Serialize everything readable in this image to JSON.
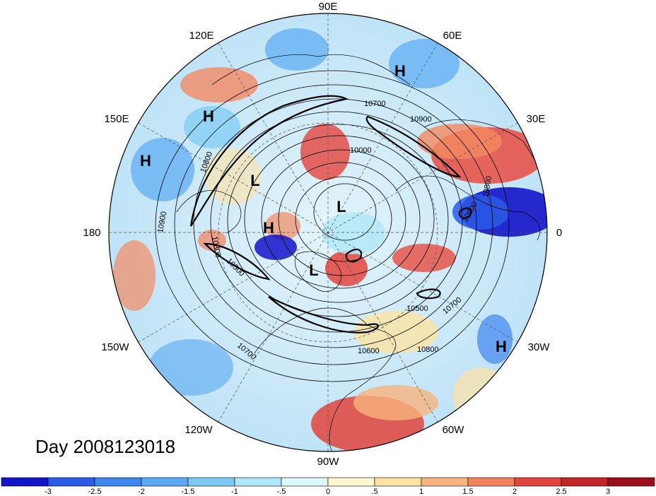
{
  "title": "Day 2008123018",
  "longitude_labels": [
    "90E",
    "60E",
    "30E",
    "0",
    "30W",
    "60W",
    "90W",
    "120W",
    "150W",
    "180",
    "150E",
    "120E"
  ],
  "pressure_systems": [
    {
      "type": "H"
    },
    {
      "type": "H"
    },
    {
      "type": "H"
    },
    {
      "type": "H"
    },
    {
      "type": "L"
    },
    {
      "type": "L"
    },
    {
      "type": "L"
    },
    {
      "type": "H"
    }
  ],
  "contour_labels": [
    "10700",
    "10900",
    "10000",
    "10800",
    "10600",
    "10500",
    "10300",
    "10900",
    "10700",
    "10500",
    "10800",
    "10700",
    "10600",
    "10800"
  ],
  "colorbar": {
    "tick_labels": [
      "-3",
      "-2.5",
      "-2",
      "-1.5",
      "-1",
      "-.5",
      "0",
      ".5",
      "1",
      "1.5",
      "2",
      "2.5",
      "3"
    ],
    "colors": [
      "#1313c8",
      "#2c5ae6",
      "#3f86ee",
      "#5aa9f2",
      "#7ccaf4",
      "#aee7f8",
      "#dcf6fb",
      "#fdf7cf",
      "#fde3a3",
      "#f7b47e",
      "#f2825c",
      "#e3443c",
      "#c22427",
      "#9c0f1d"
    ]
  },
  "colors": {
    "land_outline": "#000000",
    "contour": "#000000",
    "grid": "#555555"
  }
}
